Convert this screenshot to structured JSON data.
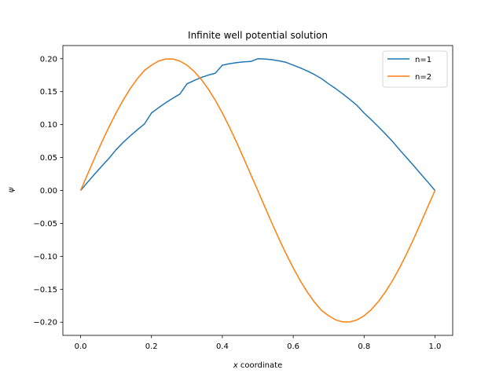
{
  "chart_data": {
    "type": "line",
    "title": "Infinite well potential solution",
    "xlabel_italic": "x",
    "xlabel_rest": " coordinate",
    "ylabel": "ψ",
    "xlim": [
      -0.05,
      1.05
    ],
    "ylim": [
      -0.22,
      0.22
    ],
    "xticks": [
      0.0,
      0.2,
      0.4,
      0.6,
      0.8,
      1.0
    ],
    "xtick_labels": [
      "0.0",
      "0.2",
      "0.4",
      "0.6",
      "0.8",
      "1.0"
    ],
    "yticks": [
      -0.2,
      -0.15,
      -0.1,
      -0.05,
      0.0,
      0.05,
      0.1,
      0.15,
      0.2
    ],
    "ytick_labels": [
      "−0.20",
      "−0.15",
      "−0.10",
      "−0.05",
      "0.00",
      "0.05",
      "0.10",
      "0.15",
      "0.20"
    ],
    "grid": false,
    "legend_position": "top-right",
    "series": [
      {
        "name": "n=1",
        "color": "#1f77b4",
        "x": [
          0.0,
          0.02,
          0.04,
          0.06,
          0.08,
          0.1,
          0.12,
          0.14,
          0.16,
          0.18,
          0.2,
          0.22,
          0.24,
          0.26,
          0.28,
          0.3,
          0.32,
          0.34,
          0.36,
          0.38,
          0.4,
          0.42,
          0.44,
          0.46,
          0.48,
          0.5,
          0.52,
          0.54,
          0.56,
          0.58,
          0.6,
          0.62,
          0.64,
          0.66,
          0.68,
          0.7,
          0.72,
          0.74,
          0.76,
          0.78,
          0.8,
          0.82,
          0.84,
          0.86,
          0.88,
          0.9,
          0.92,
          0.94,
          0.96,
          0.98,
          1.0
        ],
        "y": [
          0.0,
          0.0126,
          0.025,
          0.0371,
          0.0487,
          0.0618,
          0.0729,
          0.0828,
          0.0921,
          0.1008,
          0.1176,
          0.1256,
          0.1331,
          0.14,
          0.1463,
          0.1618,
          0.1669,
          0.1714,
          0.1751,
          0.178,
          0.1902,
          0.1924,
          0.1941,
          0.1952,
          0.1958,
          0.2,
          0.1996,
          0.1985,
          0.1968,
          0.1945,
          0.1902,
          0.1861,
          0.1813,
          0.1759,
          0.1698,
          0.1618,
          0.1545,
          0.1466,
          0.1381,
          0.1291,
          0.1176,
          0.1075,
          0.0969,
          0.0859,
          0.0745,
          0.0618,
          0.0498,
          0.0375,
          0.0251,
          0.0126,
          0.0
        ]
      },
      {
        "name": "n=2",
        "color": "#ff7f0e",
        "x": [
          0.0,
          0.02,
          0.04,
          0.06,
          0.08,
          0.1,
          0.12,
          0.14,
          0.16,
          0.18,
          0.2,
          0.22,
          0.24,
          0.26,
          0.28,
          0.3,
          0.32,
          0.34,
          0.36,
          0.38,
          0.4,
          0.42,
          0.44,
          0.46,
          0.48,
          0.5,
          0.52,
          0.54,
          0.56,
          0.58,
          0.6,
          0.62,
          0.64,
          0.66,
          0.68,
          0.7,
          0.72,
          0.74,
          0.76,
          0.78,
          0.8,
          0.82,
          0.84,
          0.86,
          0.88,
          0.9,
          0.92,
          0.94,
          0.96,
          0.98,
          1.0
        ],
        "y": [
          0.0,
          0.0251,
          0.0498,
          0.0736,
          0.0963,
          0.1176,
          0.1371,
          0.1545,
          0.1696,
          0.1821,
          0.1902,
          0.1965,
          0.1996,
          0.1996,
          0.1965,
          0.1902,
          0.181,
          0.1689,
          0.1542,
          0.137,
          0.1176,
          0.0962,
          0.0732,
          0.0491,
          0.0244,
          0.0,
          -0.0251,
          -0.0498,
          -0.0736,
          -0.0963,
          -0.1176,
          -0.1371,
          -0.1545,
          -0.1696,
          -0.1821,
          -0.1902,
          -0.1965,
          -0.1996,
          -0.1996,
          -0.1965,
          -0.1902,
          -0.181,
          -0.1689,
          -0.1542,
          -0.137,
          -0.1176,
          -0.0962,
          -0.0732,
          -0.0491,
          -0.0244,
          0.0
        ]
      }
    ]
  }
}
